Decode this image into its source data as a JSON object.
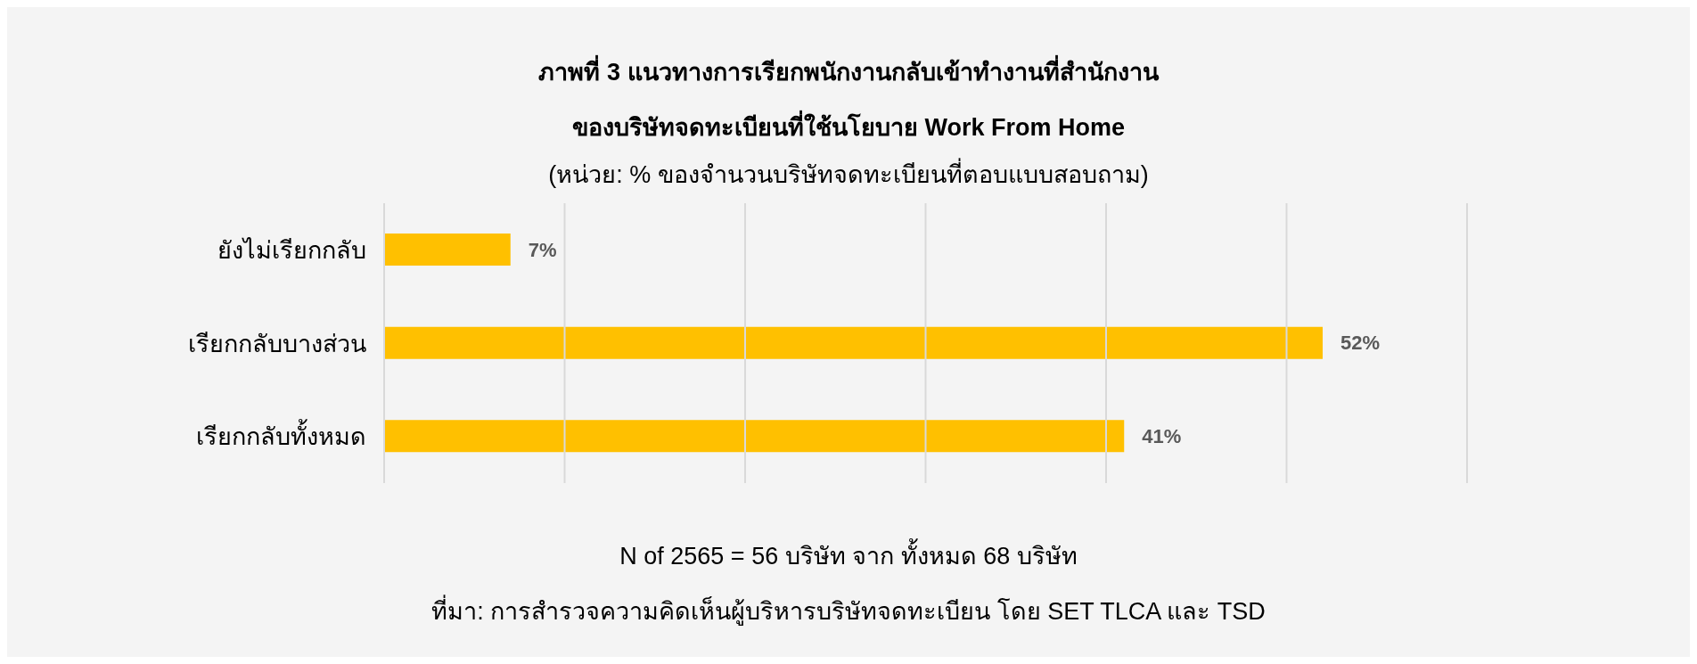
{
  "chart_data": {
    "type": "bar",
    "orientation": "horizontal",
    "title": "ภาพที่ 3 แนวทางการเรียกพนักงานกลับเข้าทำงานที่สำนักงาน\nของบริษัทจดทะเบียนที่ใช้นโยบาย Work From Home",
    "subtitle": "(หน่วย: % ของจำนวนบริษัทจดทะเบียนที่ตอบแบบสอบถาม)",
    "categories": [
      "ยังไม่เรียกกลับ",
      "เรียกกลับบางส่วน",
      "เรียกกลับทั้งหมด"
    ],
    "values": [
      7,
      52,
      41
    ],
    "color": "#ffc000",
    "value_labels": [
      "7%",
      "52%",
      "41%"
    ],
    "xlim": [
      0,
      60
    ],
    "xticks": [
      {
        "value": 0,
        "label": null
      },
      {
        "value": 10,
        "label": null
      },
      {
        "value": 20,
        "label": null
      },
      {
        "value": 30,
        "label": null
      },
      {
        "value": 40,
        "label": null
      },
      {
        "value": 50,
        "label": null
      },
      {
        "value": 60,
        "label": null
      }
    ],
    "tick_labels": "y",
    "grid": "x",
    "legend": false,
    "annotations": [
      "N of 2565 = 56 บริษัท จาก ทั้งหมด 68 บริษัท",
      "ที่มา: การสำรวจความคิดเห็นผู้บริหารบริษัทจดทะเบียน โดย SET TLCA และ TSD"
    ]
  }
}
